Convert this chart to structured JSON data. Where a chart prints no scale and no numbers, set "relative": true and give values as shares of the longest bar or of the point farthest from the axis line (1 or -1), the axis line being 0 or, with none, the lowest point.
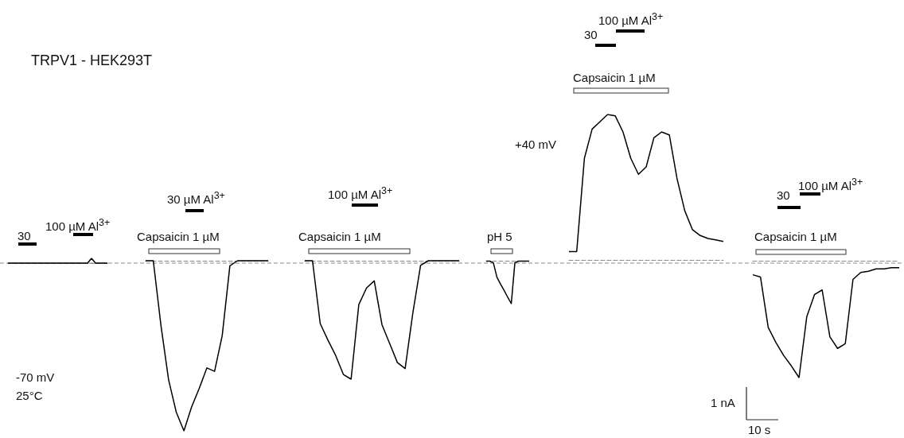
{
  "chart_data": [
    {
      "type": "line",
      "title": "TRPV1 - HEK293T",
      "relative": true,
      "marker": "none",
      "categories": [
        null,
        null,
        null,
        null,
        null,
        null,
        null,
        null,
        null,
        null,
        null,
        null,
        null,
        null,
        null,
        null,
        null,
        null,
        null,
        null,
        null,
        null,
        null,
        null,
        null,
        null
      ],
      "series": [
        {
          "color": "#000000",
          "values": [
            0,
            0,
            0,
            0,
            0,
            0,
            0,
            0,
            0,
            0,
            0,
            0,
            0,
            0,
            0,
            0,
            0,
            0,
            0,
            0,
            0,
            1,
            0,
            0,
            0,
            0
          ]
        }
      ],
      "annotations": [
        "30",
        "100 µM Al$^{3+}$",
        "30 µM Al$^{3+}$",
        "Capsaicin 1 µM",
        "Capsaicin 1 µM",
        "100 µM Al$^{3+}$",
        "pH 5",
        "30",
        "100 µM Al$^{3+}$",
        "Capsaicin 1 µM",
        "+40 mV",
        "30",
        "100 µM Al$^{3+}$",
        "Capsaicin 1 µM",
        "-70 mV",
        "25°C",
        "1 nA",
        "10 s"
      ]
    },
    {
      "type": "line",
      "relative": true,
      "marker": "none",
      "categories": [
        null,
        null,
        null,
        null,
        null,
        null,
        null,
        null,
        null,
        null,
        null,
        null,
        null,
        null,
        null,
        null,
        null
      ],
      "series": [
        {
          "color": "#000000",
          "values": [
            0,
            0,
            -0.38,
            -0.7,
            -0.89,
            -1,
            -0.86,
            -0.75,
            -0.63,
            -0.65,
            -0.44,
            -0.03,
            0,
            0,
            0,
            0,
            0
          ]
        }
      ]
    },
    {
      "type": "line",
      "relative": true,
      "marker": "none",
      "categories": [
        null,
        null,
        null,
        null,
        null,
        null,
        null,
        null,
        null,
        null,
        null,
        null,
        null,
        null,
        null,
        null,
        null,
        null,
        null,
        null,
        null
      ],
      "series": [
        {
          "color": "#000000",
          "values": [
            0,
            0,
            -0.53,
            -0.67,
            -0.8,
            -0.96,
            -1,
            -0.37,
            -0.23,
            -0.17,
            -0.54,
            -0.7,
            -0.86,
            -0.91,
            -0.44,
            -0.04,
            0,
            0,
            0,
            0,
            0
          ]
        }
      ]
    },
    {
      "type": "line",
      "relative": true,
      "marker": "none",
      "categories": [
        null,
        null,
        null,
        null,
        null,
        null,
        null,
        null,
        null,
        null,
        null,
        null,
        null
      ],
      "series": [
        {
          "color": "#000000",
          "values": [
            0,
            0,
            -0.04,
            -0.38,
            -0.54,
            -0.69,
            -0.85,
            -1,
            -0.04,
            0,
            0,
            0,
            0
          ]
        }
      ]
    },
    {
      "type": "line",
      "relative": true,
      "marker": "none",
      "categories": [
        null,
        null,
        null,
        null,
        null,
        null,
        null,
        null,
        null,
        null,
        null,
        null,
        null,
        null,
        null,
        null,
        null,
        null,
        null,
        null,
        null
      ],
      "series": [
        {
          "color": "#000000",
          "values": [
            0.06,
            0.06,
            0.7,
            0.9,
            0.95,
            1,
            0.99,
            0.88,
            0.7,
            0.59,
            0.64,
            0.84,
            0.88,
            0.86,
            0.56,
            0.34,
            0.21,
            0.17,
            0.15,
            0.14,
            0.13
          ]
        }
      ]
    },
    {
      "type": "line",
      "relative": true,
      "marker": "none",
      "categories": [
        null,
        null,
        null,
        null,
        null,
        null,
        null,
        null,
        null,
        null,
        null,
        null,
        null,
        null,
        null,
        null,
        null,
        null,
        null,
        null
      ],
      "series": [
        {
          "color": "#000000",
          "values": [
            -0.12,
            -0.14,
            -0.57,
            -0.7,
            -0.81,
            -0.9,
            -1,
            -0.48,
            -0.29,
            -0.25,
            -0.65,
            -0.75,
            -0.71,
            -0.16,
            -0.1,
            -0.09,
            -0.07,
            -0.07,
            -0.06,
            -0.06
          ]
        }
      ]
    }
  ]
}
